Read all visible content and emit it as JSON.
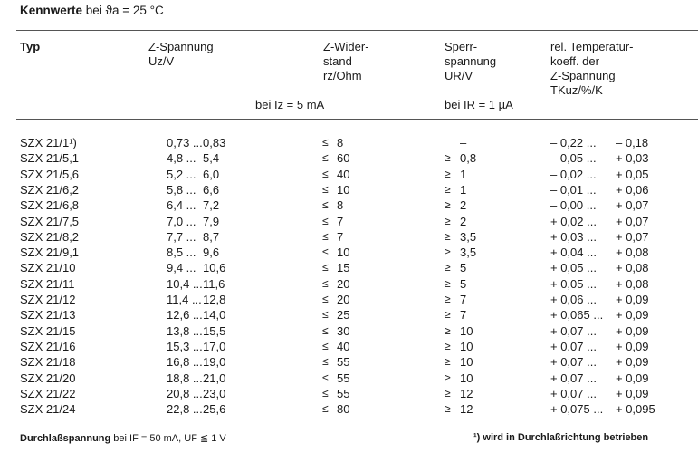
{
  "title": {
    "bold": "Kennwerte",
    "rest": "bei ϑa = 25 °C"
  },
  "headers": {
    "typ": "Typ",
    "uz": [
      "Z-Spannung",
      "Uz/V"
    ],
    "rz": [
      "Z-Wider-",
      "stand",
      "rz/Ohm"
    ],
    "ur": [
      "Sperr-",
      "spannung",
      "UR/V"
    ],
    "tk": [
      "rel. Temperatur-",
      "koeff. der",
      "Z-Spannung",
      "TKuz/%/K"
    ],
    "cond_iz": "bei Iz = 5  mA",
    "cond_ir": "bei IR = 1 µA"
  },
  "rows": [
    {
      "typ": "SZX 21/1¹)",
      "uz_min": "0,73 ...",
      "uz_max": "0,83",
      "rz_sym": "≤",
      "rz": "8",
      "ur_sym": "",
      "ur": "–",
      "tk_min": "– 0,22 ...",
      "tk_max": "– 0,18"
    },
    {
      "typ": "SZX 21/5,1",
      "uz_min": "4,8 ...",
      "uz_max": "5,4",
      "rz_sym": "≤",
      "rz": "60",
      "ur_sym": "≥",
      "ur": "0,8",
      "tk_min": "– 0,05 ...",
      "tk_max": "+ 0,03"
    },
    {
      "typ": "SZX 21/5,6",
      "uz_min": "5,2 ...",
      "uz_max": "6,0",
      "rz_sym": "≤",
      "rz": "40",
      "ur_sym": "≥",
      "ur": "1",
      "tk_min": "– 0,02 ...",
      "tk_max": "+ 0,05"
    },
    {
      "typ": "SZX 21/6,2",
      "uz_min": "5,8 ...",
      "uz_max": "6,6",
      "rz_sym": "≤",
      "rz": "10",
      "ur_sym": "≥",
      "ur": "1",
      "tk_min": "– 0,01 ...",
      "tk_max": "+ 0,06"
    },
    {
      "typ": "SZX 21/6,8",
      "uz_min": "6,4 ...",
      "uz_max": "7,2",
      "rz_sym": "≤",
      "rz": "8",
      "ur_sym": "≥",
      "ur": "2",
      "tk_min": "– 0,00 ...",
      "tk_max": "+ 0,07"
    },
    {
      "typ": "SZX 21/7,5",
      "uz_min": "7,0 ...",
      "uz_max": "7,9",
      "rz_sym": "≤",
      "rz": "7",
      "ur_sym": "≥",
      "ur": "2",
      "tk_min": "+ 0,02 ...",
      "tk_max": "+ 0,07"
    },
    {
      "typ": "SZX 21/8,2",
      "uz_min": "7,7 ...",
      "uz_max": "8,7",
      "rz_sym": "≤",
      "rz": "7",
      "ur_sym": "≥",
      "ur": "3,5",
      "tk_min": "+ 0,03 ...",
      "tk_max": "+ 0,07"
    },
    {
      "typ": "SZX 21/9,1",
      "uz_min": "8,5 ...",
      "uz_max": "9,6",
      "rz_sym": "≤",
      "rz": "10",
      "ur_sym": "≥",
      "ur": "3,5",
      "tk_min": "+ 0,04 ...",
      "tk_max": "+ 0,08"
    },
    {
      "typ": "SZX 21/10",
      "uz_min": "9,4 ...",
      "uz_max": "10,6",
      "rz_sym": "≤",
      "rz": "15",
      "ur_sym": "≥",
      "ur": "5",
      "tk_min": "+ 0,05 ...",
      "tk_max": "+ 0,08"
    },
    {
      "typ": "SZX 21/11",
      "uz_min": "10,4 ...",
      "uz_max": "11,6",
      "rz_sym": "≤",
      "rz": "20",
      "ur_sym": "≥",
      "ur": "5",
      "tk_min": "+ 0,05 ...",
      "tk_max": "+ 0,08"
    },
    {
      "typ": "SZX 21/12",
      "uz_min": "11,4 ...",
      "uz_max": "12,8",
      "rz_sym": "≤",
      "rz": "20",
      "ur_sym": "≥",
      "ur": "7",
      "tk_min": "+ 0,06 ...",
      "tk_max": "+ 0,09"
    },
    {
      "typ": "SZX 21/13",
      "uz_min": "12,6 ...",
      "uz_max": "14,0",
      "rz_sym": "≤",
      "rz": "25",
      "ur_sym": "≥",
      "ur": "7",
      "tk_min": "+ 0,065 ...",
      "tk_max": "+ 0,09"
    },
    {
      "typ": "SZX 21/15",
      "uz_min": "13,8 ...",
      "uz_max": "15,5",
      "rz_sym": "≤",
      "rz": "30",
      "ur_sym": "≥",
      "ur": "10",
      "tk_min": "+ 0,07 ...",
      "tk_max": "+ 0,09"
    },
    {
      "typ": "SZX 21/16",
      "uz_min": "15,3 ...",
      "uz_max": "17,0",
      "rz_sym": "≤",
      "rz": "40",
      "ur_sym": "≥",
      "ur": "10",
      "tk_min": "+ 0,07 ...",
      "tk_max": "+ 0,09"
    },
    {
      "typ": "SZX 21/18",
      "uz_min": "16,8 ...",
      "uz_max": "19,0",
      "rz_sym": "≤",
      "rz": "55",
      "ur_sym": "≥",
      "ur": "10",
      "tk_min": "+ 0,07 ...",
      "tk_max": "+ 0,09"
    },
    {
      "typ": "SZX 21/20",
      "uz_min": "18,8 ...",
      "uz_max": "21,0",
      "rz_sym": "≤",
      "rz": "55",
      "ur_sym": "≥",
      "ur": "10",
      "tk_min": "+ 0,07 ...",
      "tk_max": "+ 0,09"
    },
    {
      "typ": "SZX 21/22",
      "uz_min": "20,8 ...",
      "uz_max": "23,0",
      "rz_sym": "≤",
      "rz": "55",
      "ur_sym": "≥",
      "ur": "12",
      "tk_min": "+ 0,07 ...",
      "tk_max": "+ 0,09"
    },
    {
      "typ": "SZX 21/24",
      "uz_min": "22,8 ...",
      "uz_max": "25,6",
      "rz_sym": "≤",
      "rz": "80",
      "ur_sym": "≥",
      "ur": "12",
      "tk_min": "+ 0,075 ...",
      "tk_max": "+ 0,095"
    }
  ],
  "footer": {
    "left_bold": "Durchlaßspannung",
    "left_rest": "bei IF = 50 mA, UF ≦ 1 V",
    "right": "¹) wird in Durchlaßrichtung betrieben"
  }
}
